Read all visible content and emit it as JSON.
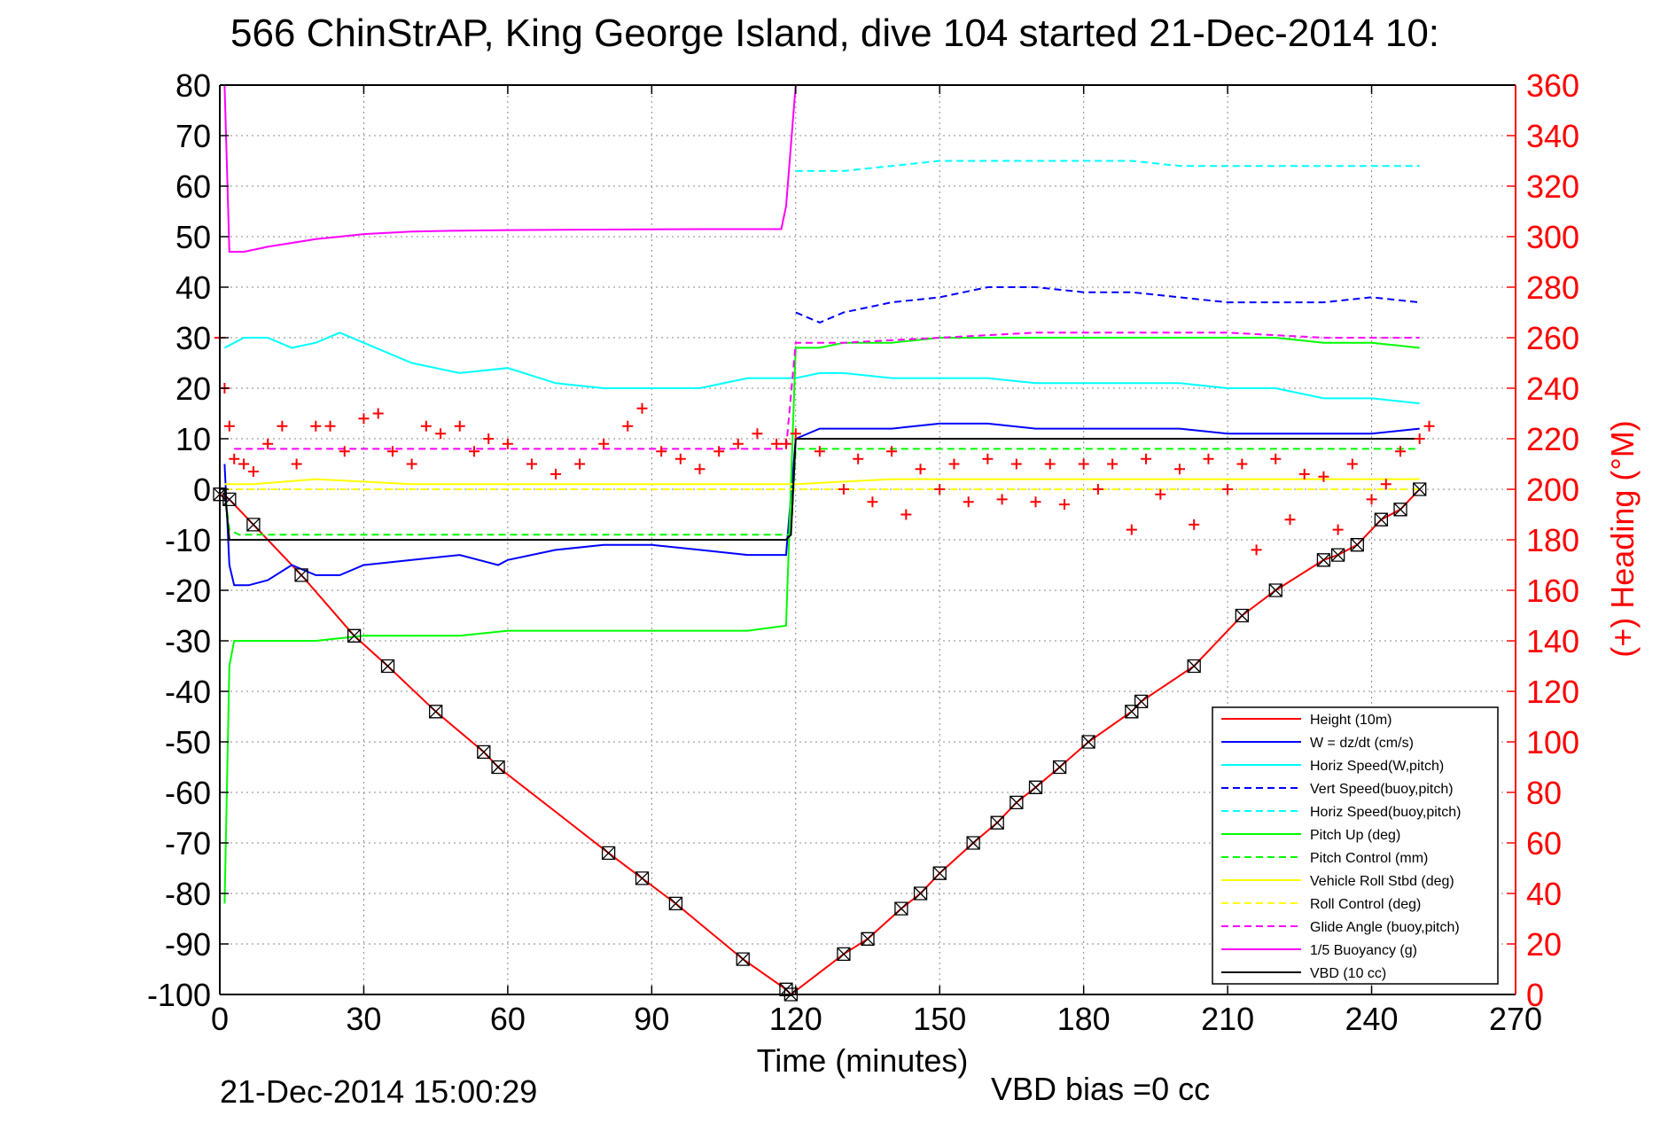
{
  "figure": {
    "title": "566 ChinStrAP, King George Island, dive 104 started 21-Dec-2014 10:",
    "footer_timestamp": "21-Dec-2014 15:00:29",
    "footer_bias": "VBD bias =0 cc"
  },
  "chart_data": {
    "type": "line",
    "title": "566 ChinStrAP, King George Island, dive 104 started 21-Dec-2014 10:",
    "xlabel": "Time (minutes)",
    "ylabel": "",
    "y2label": "(+) Heading (°M)",
    "xlim": [
      0,
      270
    ],
    "ylim": [
      -100,
      80
    ],
    "y2lim": [
      0,
      360
    ],
    "xticks": [
      "0",
      "30",
      "60",
      "90",
      "120",
      "150",
      "180",
      "210",
      "240",
      "270"
    ],
    "yticks": [
      "80",
      "70",
      "60",
      "50",
      "40",
      "30",
      "20",
      "10",
      "0",
      "-10",
      "-20",
      "-30",
      "-40",
      "-50",
      "-60",
      "-70",
      "-80",
      "-90",
      "-100"
    ],
    "y2ticks": [
      "360",
      "340",
      "320",
      "300",
      "280",
      "260",
      "240",
      "220",
      "200",
      "180",
      "160",
      "140",
      "120",
      "100",
      "80",
      "60",
      "40",
      "20",
      "0"
    ],
    "grid": true,
    "legend_position": "bottom-right",
    "colors": {
      "red": "#ff0000",
      "blue": "#0000ff",
      "cyan": "#00ffff",
      "green": "#00ff00",
      "yellow": "#ffff00",
      "magenta": "#ff00ff",
      "black": "#000000",
      "axis_right": "#ff0000"
    },
    "legend": [
      {
        "label": "Height (10m)",
        "color": "#ff0000",
        "dash": false
      },
      {
        "label": "W = dz/dt (cm/s)",
        "color": "#0000ff",
        "dash": false
      },
      {
        "label": "Horiz Speed(W,pitch)",
        "color": "#00ffff",
        "dash": false
      },
      {
        "label": "Vert Speed(buoy,pitch)",
        "color": "#0000ff",
        "dash": true
      },
      {
        "label": "Horiz Speed(buoy,pitch)",
        "color": "#00ffff",
        "dash": true
      },
      {
        "label": "Pitch Up (deg)",
        "color": "#00ff00",
        "dash": false
      },
      {
        "label": "Pitch Control (mm)",
        "color": "#00ff00",
        "dash": true
      },
      {
        "label": "Vehicle Roll Stbd (deg)",
        "color": "#ffff00",
        "dash": false
      },
      {
        "label": "Roll Control (deg)",
        "color": "#ffff00",
        "dash": true
      },
      {
        "label": "Glide Angle (buoy,pitch)",
        "color": "#ff00ff",
        "dash": true
      },
      {
        "label": "1/5 Buoyancy (g)",
        "color": "#ff00ff",
        "dash": false
      },
      {
        "label": "VBD (10 cc)",
        "color": "#000000",
        "dash": false
      }
    ],
    "series": [
      {
        "name": "Height (10m)",
        "color": "#ff0000",
        "dash": false,
        "marker": "none",
        "x": [
          0,
          2,
          7,
          17,
          28,
          35,
          45,
          55,
          58,
          81,
          88,
          95,
          109,
          118,
          119,
          130,
          135,
          142,
          146,
          150,
          157,
          162,
          166,
          170,
          175,
          181,
          190,
          192,
          203,
          213,
          220,
          230,
          233,
          237,
          242,
          246,
          250
        ],
        "y": [
          -1,
          -2,
          -7,
          -17,
          -29,
          -35,
          -44,
          -52,
          -55,
          -72,
          -77,
          -82,
          -93,
          -99,
          -100,
          -92,
          -89,
          -83,
          -80,
          -76,
          -70,
          -66,
          -62,
          -59,
          -55,
          -50,
          -44,
          -42,
          -35,
          -25,
          -20,
          -14,
          -13,
          -11,
          -6,
          -4,
          0
        ]
      },
      {
        "name": "W = dz/dt (cm/s)",
        "color": "#0000ff",
        "dash": false,
        "marker": "none",
        "x": [
          1,
          2,
          3,
          6,
          10,
          15,
          20,
          25,
          30,
          40,
          50,
          58,
          60,
          70,
          80,
          90,
          100,
          110,
          118,
          120,
          125,
          130,
          140,
          150,
          160,
          170,
          180,
          190,
          200,
          210,
          220,
          230,
          240,
          250
        ],
        "y": [
          5,
          -15,
          -19,
          -19,
          -18,
          -15,
          -17,
          -17,
          -15,
          -14,
          -13,
          -15,
          -14,
          -12,
          -11,
          -11,
          -12,
          -13,
          -13,
          10,
          12,
          12,
          12,
          13,
          13,
          12,
          12,
          12,
          12,
          11,
          11,
          11,
          11,
          12
        ]
      },
      {
        "name": "Horiz Speed(W,pitch)",
        "color": "#00ffff",
        "dash": false,
        "marker": "none",
        "x": [
          1,
          5,
          10,
          15,
          20,
          25,
          30,
          40,
          50,
          60,
          70,
          80,
          90,
          100,
          110,
          118,
          120,
          125,
          130,
          140,
          150,
          160,
          170,
          180,
          190,
          200,
          210,
          220,
          230,
          240,
          250
        ],
        "y": [
          28,
          30,
          30,
          28,
          29,
          31,
          29,
          25,
          23,
          24,
          21,
          20,
          20,
          20,
          22,
          22,
          22,
          23,
          23,
          22,
          22,
          22,
          21,
          21,
          21,
          21,
          20,
          20,
          18,
          18,
          17
        ]
      },
      {
        "name": "Vert Speed(buoy,pitch)",
        "color": "#0000ff",
        "dash": true,
        "marker": "none",
        "x": [
          120,
          125,
          130,
          140,
          150,
          160,
          170,
          180,
          190,
          200,
          210,
          220,
          230,
          240,
          250
        ],
        "y": [
          35,
          33,
          35,
          37,
          38,
          40,
          40,
          39,
          39,
          38,
          37,
          37,
          37,
          38,
          37
        ]
      },
      {
        "name": "Horiz Speed(buoy,pitch)",
        "color": "#00ffff",
        "dash": true,
        "marker": "none",
        "x": [
          120,
          125,
          130,
          140,
          150,
          160,
          170,
          180,
          190,
          200,
          210,
          220,
          230,
          240,
          250
        ],
        "y": [
          63,
          63,
          63,
          64,
          65,
          65,
          65,
          65,
          65,
          64,
          64,
          64,
          64,
          64,
          64
        ]
      },
      {
        "name": "Pitch Up (deg)",
        "color": "#00ff00",
        "dash": false,
        "marker": "none",
        "x": [
          1,
          2,
          3,
          5,
          10,
          20,
          30,
          40,
          50,
          60,
          70,
          80,
          90,
          100,
          110,
          118,
          120,
          125,
          130,
          140,
          150,
          160,
          170,
          180,
          190,
          200,
          210,
          220,
          230,
          240,
          250
        ],
        "y": [
          -82,
          -35,
          -30,
          -30,
          -30,
          -30,
          -29,
          -29,
          -29,
          -28,
          -28,
          -28,
          -28,
          -28,
          -28,
          -27,
          28,
          28,
          29,
          29,
          30,
          30,
          30,
          30,
          30,
          30,
          30,
          30,
          29,
          29,
          28
        ]
      },
      {
        "name": "Pitch Control (mm)",
        "color": "#00ff00",
        "dash": true,
        "marker": "none",
        "x": [
          1,
          2,
          4,
          118,
          119,
          120,
          250
        ],
        "y": [
          0,
          -8,
          -9,
          -9,
          -9,
          8,
          8
        ]
      },
      {
        "name": "Vehicle Roll Stbd (deg)",
        "color": "#ffff00",
        "dash": false,
        "marker": "none",
        "x": [
          1,
          7,
          20,
          40,
          60,
          80,
          100,
          118,
          120,
          140,
          160,
          180,
          200,
          220,
          240,
          250
        ],
        "y": [
          1,
          1,
          2,
          1,
          1,
          1,
          1,
          1,
          1,
          2,
          2,
          2,
          2,
          2,
          2,
          2
        ]
      },
      {
        "name": "Roll Control (deg)",
        "color": "#ffff00",
        "dash": true,
        "marker": "none",
        "x": [
          1,
          250
        ],
        "y": [
          0,
          0
        ]
      },
      {
        "name": "Glide Angle (buoy,pitch)",
        "color": "#ff00ff",
        "dash": true,
        "marker": "none",
        "x": [
          3,
          118,
          120,
          130,
          150,
          170,
          190,
          210,
          230,
          250
        ],
        "y": [
          8,
          8,
          29,
          29,
          30,
          31,
          31,
          31,
          30,
          30
        ]
      },
      {
        "name": "1/5 Buoyancy (g)",
        "color": "#ff00ff",
        "dash": false,
        "marker": "none",
        "x": [
          1,
          2,
          5,
          10,
          20,
          30,
          40,
          50,
          60,
          80,
          100,
          117,
          118,
          120
        ],
        "y": [
          80,
          47,
          47,
          48,
          49.5,
          50.5,
          51,
          51.2,
          51.3,
          51.4,
          51.5,
          51.5,
          56,
          80
        ]
      },
      {
        "name": "VBD (10 cc)",
        "color": "#000000",
        "dash": false,
        "marker": "none",
        "x": [
          1,
          2,
          118,
          119,
          120,
          250
        ],
        "y": [
          0,
          -10,
          -10,
          -9,
          10,
          10
        ]
      },
      {
        "name": "Heading",
        "color": "#ff0000",
        "dash": false,
        "axis": "right",
        "marker": "+",
        "x": [
          0,
          1,
          2,
          3,
          5,
          7,
          10,
          13,
          16,
          20,
          23,
          26,
          30,
          33,
          36,
          40,
          43,
          46,
          50,
          53,
          56,
          60,
          65,
          70,
          75,
          80,
          85,
          88,
          92,
          96,
          100,
          104,
          108,
          112,
          116,
          118,
          120,
          125,
          130,
          133,
          136,
          140,
          143,
          146,
          150,
          153,
          156,
          160,
          163,
          166,
          170,
          173,
          176,
          180,
          183,
          186,
          190,
          193,
          196,
          200,
          203,
          206,
          210,
          213,
          216,
          220,
          223,
          226,
          230,
          233,
          236,
          240,
          243,
          246,
          250,
          252
        ],
        "y": [
          260,
          240,
          225,
          212,
          210,
          207,
          218,
          225,
          210,
          225,
          225,
          215,
          228,
          230,
          215,
          210,
          225,
          222,
          225,
          215,
          220,
          218,
          210,
          206,
          210,
          218,
          225,
          232,
          215,
          212,
          208,
          215,
          218,
          222,
          218,
          218,
          222,
          215,
          200,
          212,
          195,
          215,
          190,
          208,
          200,
          210,
          195,
          212,
          196,
          210,
          195,
          210,
          194,
          210,
          200,
          210,
          184,
          212,
          198,
          208,
          186,
          212,
          200,
          210,
          176,
          212,
          188,
          206,
          205,
          184,
          210,
          196,
          202,
          215,
          220,
          225
        ]
      }
    ]
  }
}
